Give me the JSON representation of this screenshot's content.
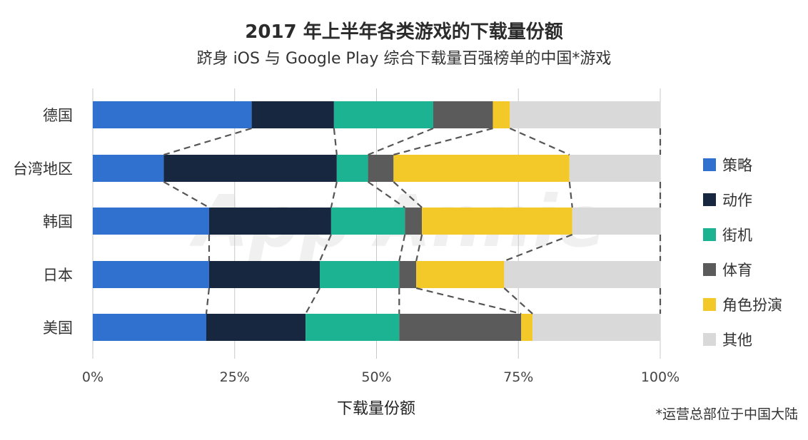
{
  "title": "2017 年上半年各类游戏的下载量份额",
  "subtitle": "跻身 iOS 与 Google Play 综合下载量百强榜单的中国*游戏",
  "footnote": "*运营总部位于中国大陆",
  "watermark": "App Annie",
  "chart_data": {
    "type": "bar",
    "orientation": "horizontal",
    "stacked": true,
    "normalized": true,
    "xlabel": "下载量份额",
    "ylabel": "",
    "xlim": [
      0,
      100
    ],
    "x_ticks": [
      "0%",
      "25%",
      "50%",
      "75%",
      "100%"
    ],
    "grid": true,
    "legend_position": "right",
    "connector_lines": "dashed",
    "categories": [
      "德国",
      "台湾地区",
      "韩国",
      "日本",
      "美国"
    ],
    "series": [
      {
        "name": "策略",
        "color": "#3071d0",
        "values": [
          28,
          12.5,
          20.5,
          20.5,
          20
        ]
      },
      {
        "name": "动作",
        "color": "#182740",
        "values": [
          14.5,
          30.5,
          21.5,
          19.5,
          17.5
        ]
      },
      {
        "name": "街机",
        "color": "#1bb391",
        "values": [
          17.5,
          5.5,
          13,
          14,
          16.5
        ]
      },
      {
        "name": "体育",
        "color": "#5b5b5b",
        "values": [
          10.5,
          4.5,
          3,
          3,
          21.5
        ]
      },
      {
        "name": "角色扮演",
        "color": "#f3c929",
        "values": [
          3,
          31,
          26.5,
          15.5,
          2
        ]
      },
      {
        "name": "其他",
        "color": "#d9d9d9",
        "values": [
          26.5,
          16,
          15.5,
          27.5,
          22.5
        ]
      }
    ]
  }
}
